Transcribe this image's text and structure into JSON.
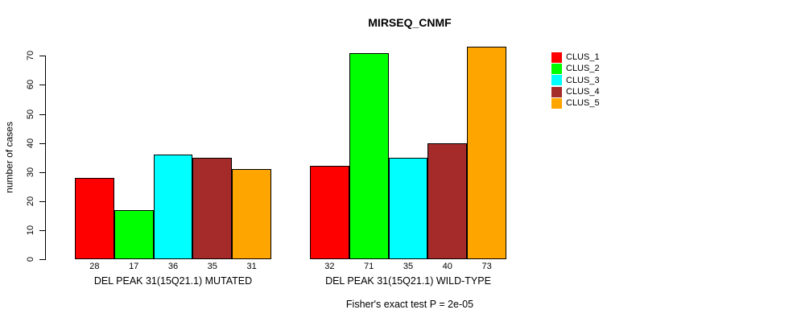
{
  "title": "MIRSEQ_CNMF",
  "footer": "Fisher's exact test P = 2e-05",
  "chart_data": {
    "type": "bar",
    "title": "MIRSEQ_CNMF",
    "ylabel": "number of cases",
    "xlabel": "",
    "ylim": [
      0,
      70
    ],
    "yticks": [
      0,
      10,
      20,
      30,
      40,
      50,
      60,
      70
    ],
    "grid": false,
    "legend_position": "right-outside",
    "bar_value_labels": true,
    "categories": [
      "DEL PEAK 31(15Q21.1) MUTATED",
      "DEL PEAK 31(15Q21.1) WILD-TYPE"
    ],
    "series": [
      {
        "name": "CLUS_1",
        "color": "#ff0000",
        "values": [
          28,
          32
        ]
      },
      {
        "name": "CLUS_2",
        "color": "#00ff00",
        "values": [
          17,
          71
        ]
      },
      {
        "name": "CLUS_3",
        "color": "#00ffff",
        "values": [
          36,
          35
        ]
      },
      {
        "name": "CLUS_4",
        "color": "#a52a2a",
        "values": [
          35,
          40
        ]
      },
      {
        "name": "CLUS_5",
        "color": "#ffa500",
        "values": [
          31,
          73
        ]
      }
    ],
    "annotation": "Fisher's exact test P = 2e-05"
  },
  "legend": {
    "items": [
      {
        "label": "CLUS_1",
        "color": "#ff0000"
      },
      {
        "label": "CLUS_2",
        "color": "#00ff00"
      },
      {
        "label": "CLUS_3",
        "color": "#00ffff"
      },
      {
        "label": "CLUS_4",
        "color": "#a52a2a"
      },
      {
        "label": "CLUS_5",
        "color": "#ffa500"
      }
    ]
  }
}
